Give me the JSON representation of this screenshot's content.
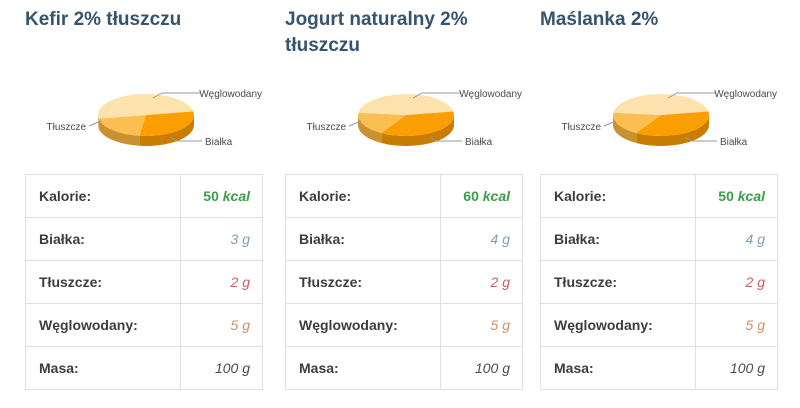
{
  "styles": {
    "title_color": "#35546e",
    "table_border_color": "#e0e0e0",
    "label_color": "#3d3d3d",
    "leader_line_color": "#999999",
    "pie_label_color": "#4a4a4a"
  },
  "pie_palette": {
    "protein": {
      "top": "#fb9e01",
      "side": "#c87c00"
    },
    "fat": {
      "top": "#fbbe50",
      "side": "#c9912f"
    },
    "carbs": {
      "top": "#fce3ad",
      "side": "#d9b060"
    }
  },
  "cards": [
    {
      "title": "Kefir 2% tłuszczu",
      "pie": {
        "slices": [
          {
            "key": "protein",
            "label": "Białka",
            "value": 3
          },
          {
            "key": "fat",
            "label": "Tłuszcze",
            "value": 2
          },
          {
            "key": "carbs",
            "label": "Węglowodany",
            "value": 5
          }
        ]
      },
      "rows": [
        {
          "label": "Kalorie:",
          "num": "50",
          "unit": "kcal",
          "color": "#3a9e4a"
        },
        {
          "label": "Białka:",
          "num": "3",
          "unit": "g",
          "color": "#82a0b5"
        },
        {
          "label": "Tłuszcze:",
          "num": "2",
          "unit": "g",
          "color": "#c75f66"
        },
        {
          "label": "Węglowodany:",
          "num": "5",
          "unit": "g",
          "color": "#cd9366"
        },
        {
          "label": "Masa:",
          "num": "100",
          "unit": "g",
          "color": "#4d4d4d"
        }
      ]
    },
    {
      "title": "Jogurt naturalny 2% tłuszczu",
      "pie": {
        "slices": [
          {
            "key": "protein",
            "label": "Białka",
            "value": 4
          },
          {
            "key": "fat",
            "label": "Tłuszcze",
            "value": 2
          },
          {
            "key": "carbs",
            "label": "Węglowodany",
            "value": 5
          }
        ]
      },
      "rows": [
        {
          "label": "Kalorie:",
          "num": "60",
          "unit": "kcal",
          "color": "#3a9e4a"
        },
        {
          "label": "Białka:",
          "num": "4",
          "unit": "g",
          "color": "#82a0b5"
        },
        {
          "label": "Tłuszcze:",
          "num": "2",
          "unit": "g",
          "color": "#c75f66"
        },
        {
          "label": "Węglowodany:",
          "num": "5",
          "unit": "g",
          "color": "#cd9366"
        },
        {
          "label": "Masa:",
          "num": "100",
          "unit": "g",
          "color": "#4d4d4d"
        }
      ]
    },
    {
      "title": "Maślanka 2%",
      "pie": {
        "slices": [
          {
            "key": "protein",
            "label": "Białka",
            "value": 4
          },
          {
            "key": "fat",
            "label": "Tłuszcze",
            "value": 2
          },
          {
            "key": "carbs",
            "label": "Węglowodany",
            "value": 5
          }
        ]
      },
      "rows": [
        {
          "label": "Kalorie:",
          "num": "50",
          "unit": "kcal",
          "color": "#3a9e4a"
        },
        {
          "label": "Białka:",
          "num": "4",
          "unit": "g",
          "color": "#82a0b5"
        },
        {
          "label": "Tłuszcze:",
          "num": "2",
          "unit": "g",
          "color": "#c75f66"
        },
        {
          "label": "Węglowodany:",
          "num": "5",
          "unit": "g",
          "color": "#cd9366"
        },
        {
          "label": "Masa:",
          "num": "100",
          "unit": "g",
          "color": "#4d4d4d"
        }
      ]
    }
  ],
  "chart_data": [
    {
      "type": "pie",
      "title": "Kefir 2% tłuszczu",
      "labels": [
        "Białka",
        "Tłuszcze",
        "Węglowodany"
      ],
      "values_g": [
        3,
        2,
        5
      ],
      "percent": [
        30,
        20,
        50
      ],
      "legend_position": "callout-labels",
      "style": "3d-pie"
    },
    {
      "type": "pie",
      "title": "Jogurt naturalny 2% tłuszczu",
      "labels": [
        "Białka",
        "Tłuszcze",
        "Węglowodany"
      ],
      "values_g": [
        4,
        2,
        5
      ],
      "percent": [
        36.4,
        18.2,
        45.5
      ],
      "legend_position": "callout-labels",
      "style": "3d-pie"
    },
    {
      "type": "pie",
      "title": "Maślanka 2%",
      "labels": [
        "Białka",
        "Tłuszcze",
        "Węglowodany"
      ],
      "values_g": [
        4,
        2,
        5
      ],
      "percent": [
        36.4,
        18.2,
        45.5
      ],
      "legend_position": "callout-labels",
      "style": "3d-pie"
    }
  ]
}
